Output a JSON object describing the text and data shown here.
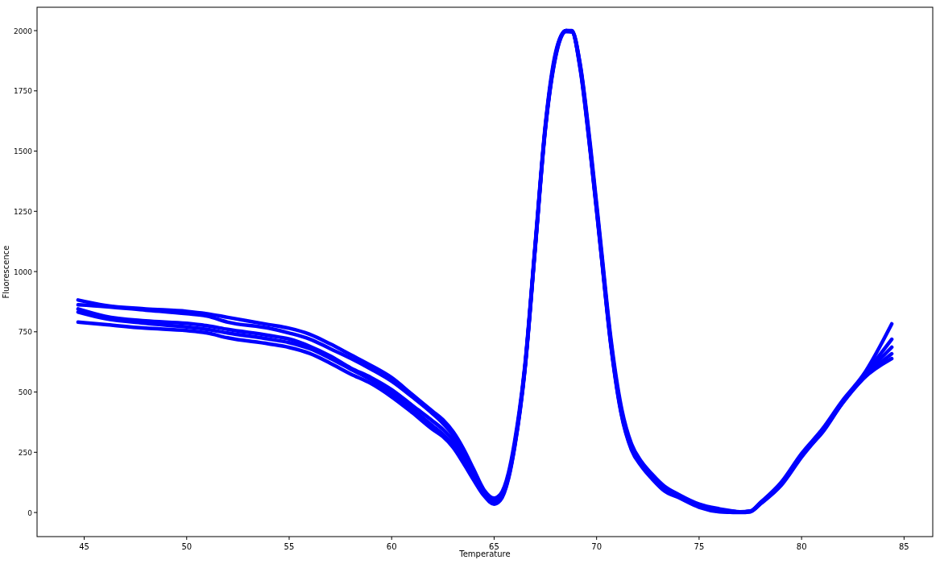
{
  "chart_data": {
    "type": "line",
    "xlabel": "Temperature",
    "ylabel": "Fluorescence",
    "x": [
      44.7,
      46,
      48,
      50,
      51,
      52,
      54,
      55,
      56,
      57,
      58,
      59,
      60,
      61,
      62,
      62.5,
      63,
      63.5,
      64,
      64.5,
      65,
      65.3,
      65.7,
      66,
      66.5,
      67,
      67.5,
      68,
      68.5,
      68.8,
      69.2,
      69.7,
      70.2,
      70.7,
      71.2,
      71.7,
      72.2,
      72.7,
      73.3,
      74,
      75,
      76,
      76.5,
      77,
      77.5,
      78,
      79,
      80,
      81,
      82,
      83,
      84.4
    ],
    "series": [
      {
        "color": "#0000ff",
        "values": [
          882,
          860,
          845,
          835,
          825,
          810,
          780,
          765,
          740,
          700,
          655,
          610,
          560,
          490,
          420,
          385,
          335,
          265,
          180,
          95,
          60,
          75,
          165,
          295,
          610,
          1110,
          1610,
          1910,
          2000,
          1998,
          1860,
          1520,
          1120,
          720,
          440,
          285,
          210,
          160,
          110,
          75,
          35,
          15,
          8,
          3,
          6,
          42,
          125,
          245,
          345,
          465,
          570,
          783
        ]
      },
      {
        "color": "#0000ff",
        "values": [
          862,
          855,
          840,
          825,
          815,
          790,
          765,
          745,
          720,
          680,
          640,
          595,
          545,
          480,
          410,
          370,
          320,
          245,
          160,
          85,
          50,
          62,
          150,
          280,
          600,
          1100,
          1600,
          1900,
          2000,
          2000,
          1855,
          1505,
          1105,
          705,
          425,
          272,
          200,
          150,
          100,
          70,
          30,
          10,
          5,
          2,
          5,
          40,
          120,
          240,
          340,
          460,
          565,
          719
        ]
      },
      {
        "color": "#0000ff",
        "values": [
          845,
          815,
          795,
          785,
          775,
          760,
          735,
          720,
          690,
          650,
          600,
          560,
          510,
          445,
          380,
          345,
          300,
          235,
          150,
          80,
          45,
          60,
          148,
          280,
          600,
          1100,
          1600,
          1900,
          2000,
          1995,
          1850,
          1500,
          1100,
          700,
          420,
          270,
          200,
          150,
          100,
          70,
          30,
          10,
          5,
          2,
          5,
          40,
          120,
          240,
          330,
          455,
          560,
          686
        ]
      },
      {
        "color": "#0000ff",
        "values": [
          832,
          805,
          785,
          770,
          760,
          745,
          720,
          705,
          680,
          640,
          595,
          550,
          495,
          430,
          360,
          325,
          280,
          215,
          140,
          75,
          40,
          55,
          145,
          275,
          595,
          1095,
          1595,
          1895,
          1998,
          1995,
          1845,
          1495,
          1095,
          695,
          415,
          265,
          195,
          145,
          95,
          65,
          25,
          5,
          3,
          1,
          4,
          38,
          115,
          235,
          335,
          455,
          555,
          659
        ]
      },
      {
        "color": "#0000ff",
        "values": [
          790,
          780,
          765,
          755,
          745,
          725,
          700,
          685,
          660,
          620,
          575,
          535,
          480,
          415,
          345,
          315,
          270,
          205,
          135,
          70,
          35,
          50,
          140,
          270,
          590,
          1090,
          1590,
          1890,
          1996,
          1995,
          1840,
          1490,
          1090,
          690,
          410,
          260,
          190,
          140,
          90,
          62,
          22,
          3,
          1,
          0,
          3,
          36,
          112,
          230,
          335,
          455,
          555,
          639
        ]
      }
    ],
    "xlim": [
      42.7,
      86.4
    ],
    "ylim": [
      -100,
      2097
    ],
    "xticks": [
      45,
      50,
      55,
      60,
      65,
      70,
      75,
      80,
      85
    ],
    "yticks": [
      0,
      250,
      500,
      750,
      1000,
      1250,
      1500,
      1750,
      2000
    ],
    "grid": false,
    "line_style": "solid",
    "marker": "none"
  }
}
